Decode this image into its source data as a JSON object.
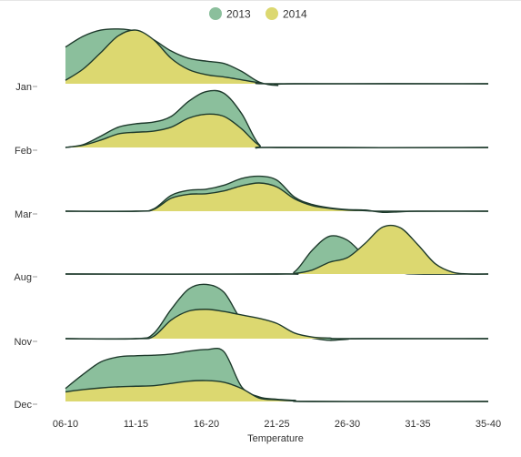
{
  "chart_data": {
    "type": "ridgeline",
    "xlabel": "Temperature",
    "categories": [
      "06-10",
      "11-15",
      "16-20",
      "21-25",
      "26-30",
      "31-35",
      "35-40"
    ],
    "rows": [
      "Jan",
      "Feb",
      "Mar",
      "Aug",
      "Nov",
      "Dec"
    ],
    "legend": {
      "placement": "top-center"
    },
    "series": [
      {
        "name": "2013",
        "color": "#8bbf9c",
        "rows": {
          "Jan": [
            [
              0,
              0.65
            ],
            [
              0.25,
              0.84
            ],
            [
              0.5,
              0.95
            ],
            [
              0.75,
              0.97
            ],
            [
              1,
              0.93
            ],
            [
              1.25,
              0.78
            ],
            [
              1.5,
              0.58
            ],
            [
              1.75,
              0.45
            ],
            [
              2,
              0.4
            ],
            [
              2.25,
              0.36
            ],
            [
              2.5,
              0.22
            ],
            [
              2.75,
              0.03
            ],
            [
              3,
              -0.03
            ],
            [
              3.25,
              0
            ],
            [
              6,
              0
            ]
          ],
          "Feb": [
            [
              0,
              0
            ],
            [
              0.25,
              0.05
            ],
            [
              0.5,
              0.2
            ],
            [
              0.75,
              0.36
            ],
            [
              1,
              0.42
            ],
            [
              1.25,
              0.45
            ],
            [
              1.5,
              0.55
            ],
            [
              1.75,
              0.82
            ],
            [
              2,
              0.99
            ],
            [
              2.25,
              0.96
            ],
            [
              2.5,
              0.6
            ],
            [
              2.75,
              0.05
            ],
            [
              3,
              0
            ],
            [
              6,
              0
            ]
          ],
          "Mar": [
            [
              0,
              0
            ],
            [
              1,
              0
            ],
            [
              1.25,
              0.04
            ],
            [
              1.5,
              0.28
            ],
            [
              1.75,
              0.37
            ],
            [
              2,
              0.39
            ],
            [
              2.25,
              0.46
            ],
            [
              2.5,
              0.58
            ],
            [
              2.75,
              0.62
            ],
            [
              3,
              0.55
            ],
            [
              3.25,
              0.25
            ],
            [
              3.5,
              0.12
            ],
            [
              3.75,
              0.06
            ],
            [
              4,
              0.03
            ],
            [
              4.25,
              0.02
            ],
            [
              4.5,
              -0.02
            ],
            [
              4.75,
              -0.01
            ],
            [
              5,
              0
            ],
            [
              6,
              0
            ]
          ],
          "Aug": [
            [
              0,
              0
            ],
            [
              3,
              0
            ],
            [
              3.25,
              0.04
            ],
            [
              3.5,
              0.42
            ],
            [
              3.75,
              0.67
            ],
            [
              4,
              0.6
            ],
            [
              4.25,
              0.32
            ],
            [
              4.5,
              0.15
            ],
            [
              4.75,
              0.03
            ],
            [
              5,
              0
            ],
            [
              6,
              0
            ]
          ],
          "Nov": [
            [
              0,
              0
            ],
            [
              1,
              0
            ],
            [
              1.25,
              0.09
            ],
            [
              1.5,
              0.52
            ],
            [
              1.75,
              0.88
            ],
            [
              2,
              0.96
            ],
            [
              2.25,
              0.82
            ],
            [
              2.5,
              0.33
            ],
            [
              2.75,
              0.15
            ],
            [
              3,
              0.12
            ],
            [
              3.25,
              0.07
            ],
            [
              3.5,
              0.01
            ],
            [
              3.75,
              -0.03
            ],
            [
              4,
              -0.01
            ],
            [
              4.25,
              0
            ],
            [
              6,
              0
            ]
          ],
          "Dec": [
            [
              0,
              0.23
            ],
            [
              0.25,
              0.48
            ],
            [
              0.5,
              0.7
            ],
            [
              0.75,
              0.79
            ],
            [
              1,
              0.81
            ],
            [
              1.25,
              0.82
            ],
            [
              1.5,
              0.84
            ],
            [
              1.75,
              0.89
            ],
            [
              2,
              0.92
            ],
            [
              2.25,
              0.88
            ],
            [
              2.5,
              0.26
            ],
            [
              2.75,
              0.08
            ],
            [
              3,
              0.04
            ],
            [
              3.25,
              0.02
            ],
            [
              3.5,
              0
            ],
            [
              6,
              0
            ]
          ]
        }
      },
      {
        "name": "2014",
        "color": "#dcd870",
        "rows": {
          "Jan": [
            [
              0,
              0.06
            ],
            [
              0.25,
              0.26
            ],
            [
              0.5,
              0.55
            ],
            [
              0.75,
              0.85
            ],
            [
              1,
              0.95
            ],
            [
              1.25,
              0.78
            ],
            [
              1.5,
              0.45
            ],
            [
              1.75,
              0.25
            ],
            [
              2,
              0.16
            ],
            [
              2.25,
              0.12
            ],
            [
              2.5,
              0.07
            ],
            [
              2.75,
              0.02
            ],
            [
              3,
              0
            ],
            [
              6,
              0
            ]
          ],
          "Feb": [
            [
              0,
              0
            ],
            [
              0.25,
              0.04
            ],
            [
              0.5,
              0.13
            ],
            [
              0.75,
              0.24
            ],
            [
              1,
              0.27
            ],
            [
              1.25,
              0.29
            ],
            [
              1.5,
              0.36
            ],
            [
              1.75,
              0.52
            ],
            [
              2,
              0.59
            ],
            [
              2.25,
              0.55
            ],
            [
              2.5,
              0.33
            ],
            [
              2.75,
              0.04
            ],
            [
              3,
              0
            ],
            [
              6,
              0
            ]
          ],
          "Mar": [
            [
              0,
              0
            ],
            [
              1,
              0
            ],
            [
              1.25,
              0.03
            ],
            [
              1.5,
              0.23
            ],
            [
              1.75,
              0.3
            ],
            [
              2,
              0.31
            ],
            [
              2.25,
              0.36
            ],
            [
              2.5,
              0.45
            ],
            [
              2.75,
              0.5
            ],
            [
              3,
              0.43
            ],
            [
              3.25,
              0.22
            ],
            [
              3.5,
              0.1
            ],
            [
              3.75,
              0.05
            ],
            [
              4,
              0.02
            ],
            [
              4.25,
              0.01
            ],
            [
              4.5,
              0
            ],
            [
              6,
              0
            ]
          ],
          "Aug": [
            [
              0,
              0
            ],
            [
              3,
              0
            ],
            [
              3.25,
              0.01
            ],
            [
              3.5,
              0.07
            ],
            [
              3.75,
              0.21
            ],
            [
              4,
              0.29
            ],
            [
              4.25,
              0.54
            ],
            [
              4.5,
              0.83
            ],
            [
              4.75,
              0.82
            ],
            [
              5,
              0.52
            ],
            [
              5.25,
              0.18
            ],
            [
              5.5,
              0.03
            ],
            [
              5.75,
              0
            ],
            [
              6,
              0
            ]
          ],
          "Nov": [
            [
              0,
              0
            ],
            [
              1,
              0
            ],
            [
              1.25,
              0.04
            ],
            [
              1.5,
              0.33
            ],
            [
              1.75,
              0.49
            ],
            [
              2,
              0.52
            ],
            [
              2.25,
              0.48
            ],
            [
              2.5,
              0.42
            ],
            [
              2.75,
              0.36
            ],
            [
              3,
              0.27
            ],
            [
              3.25,
              0.1
            ],
            [
              3.5,
              0.03
            ],
            [
              3.75,
              0.01
            ],
            [
              4,
              0
            ],
            [
              6,
              0
            ]
          ],
          "Dec": [
            [
              0,
              0.17
            ],
            [
              0.25,
              0.21
            ],
            [
              0.5,
              0.24
            ],
            [
              0.75,
              0.26
            ],
            [
              1,
              0.27
            ],
            [
              1.25,
              0.28
            ],
            [
              1.5,
              0.32
            ],
            [
              1.75,
              0.36
            ],
            [
              2,
              0.37
            ],
            [
              2.25,
              0.34
            ],
            [
              2.5,
              0.23
            ],
            [
              2.75,
              0.06
            ],
            [
              3,
              0.03
            ],
            [
              3.25,
              0.01
            ],
            [
              3.5,
              0
            ],
            [
              6,
              0
            ]
          ]
        }
      }
    ]
  }
}
